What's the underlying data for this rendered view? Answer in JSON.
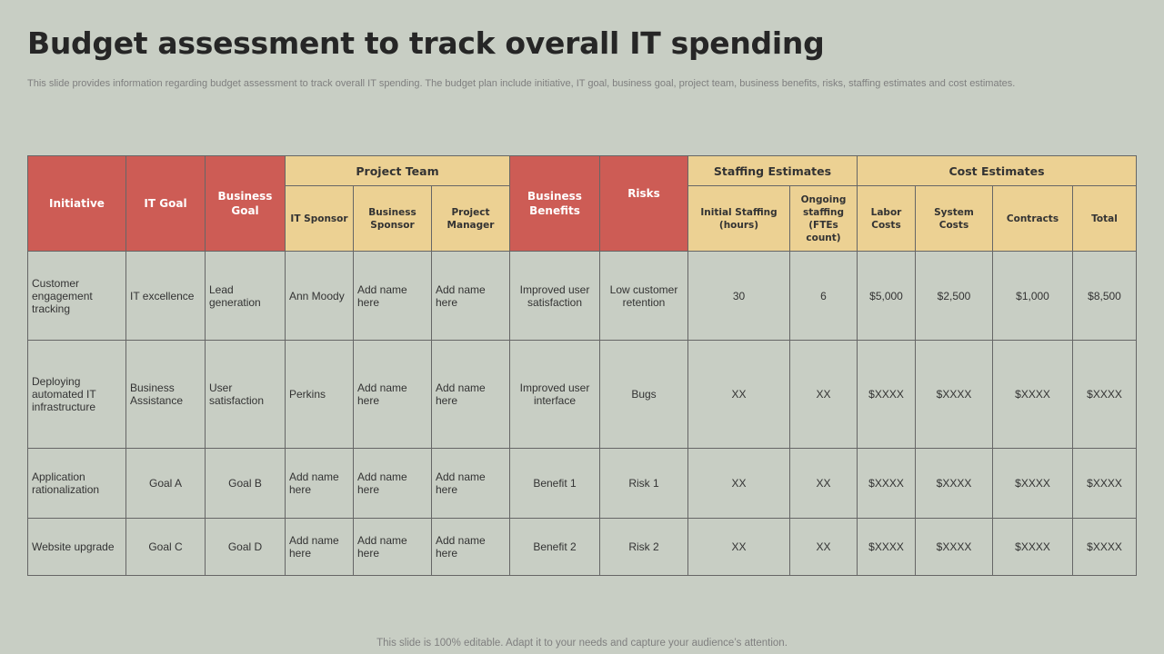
{
  "slide": {
    "title": "Budget assessment to track overall IT spending",
    "subtitle": "This slide provides information regarding budget assessment to track overall IT spending. The budget plan include initiative, IT goal, business goal, project team, business benefits, risks, staffing estimates and cost estimates.",
    "footer": "This slide is 100% editable. Adapt it to your needs and capture your audience’s attention."
  },
  "table": {
    "headers": {
      "initiative": "Initiative",
      "it_goal": "IT Goal",
      "business_goal": "Business Goal",
      "project_team": "Project Team",
      "business_benefits": "Business Benefits",
      "risks": "Risks",
      "staffing_estimates": "Staffing Estimates",
      "cost_estimates": "Cost Estimates",
      "it_sponsor": "IT Sponsor",
      "business_sponsor": "Business Sponsor",
      "project_manager": "Project Manager",
      "initial_staffing": "Initial Staffing (hours)",
      "ongoing_staffing": "Ongoing staffing (FTEs count)",
      "labor_costs": "Labor Costs",
      "system_costs": "System Costs",
      "contracts": "Contracts",
      "total": "Total"
    },
    "rows": [
      {
        "initiative": "Customer engagement tracking",
        "it_goal": "IT excellence",
        "business_goal": "Lead generation",
        "it_sponsor": "Ann Moody",
        "business_sponsor": "Add name here",
        "project_manager": "Add name here",
        "business_benefits": "Improved user satisfaction",
        "risks": "Low customer retention",
        "initial_staffing": "30",
        "ongoing_staffing": "6",
        "labor_costs": "$5,000",
        "system_costs": "$2,500",
        "contracts": "$1,000",
        "total": "$8,500"
      },
      {
        "initiative": "Deploying automated IT infrastructure",
        "it_goal": "Business Assistance",
        "business_goal": "User satisfaction",
        "it_sponsor": "Perkins",
        "business_sponsor": "Add name here",
        "project_manager": "Add name here",
        "business_benefits": "Improved user interface",
        "risks": "Bugs",
        "initial_staffing": "XX",
        "ongoing_staffing": "XX",
        "labor_costs": "$XXXX",
        "system_costs": "$XXXX",
        "contracts": "$XXXX",
        "total": "$XXXX"
      },
      {
        "initiative": "Application rationalization",
        "it_goal": "Goal A",
        "business_goal": "Goal B",
        "it_sponsor": "Add name here",
        "business_sponsor": "Add name here",
        "project_manager": "Add name here",
        "business_benefits": "Benefit 1",
        "risks": "Risk 1",
        "initial_staffing": "XX",
        "ongoing_staffing": "XX",
        "labor_costs": "$XXXX",
        "system_costs": "$XXXX",
        "contracts": "$XXXX",
        "total": "$XXXX"
      },
      {
        "initiative": "Website upgrade",
        "it_goal": "Goal C",
        "business_goal": "Goal D",
        "it_sponsor": "Add name here",
        "business_sponsor": "Add name here",
        "project_manager": "Add name here",
        "business_benefits": "Benefit 2",
        "risks": "Risk 2",
        "initial_staffing": "XX",
        "ongoing_staffing": "XX",
        "labor_costs": "$XXXX",
        "system_costs": "$XXXX",
        "contracts": "$XXXX",
        "total": "$XXXX"
      }
    ]
  },
  "colors": {
    "background": "#c8cec4",
    "header_red": "#cd5c55",
    "header_yellow": "#ecd193",
    "title": "#262626"
  }
}
